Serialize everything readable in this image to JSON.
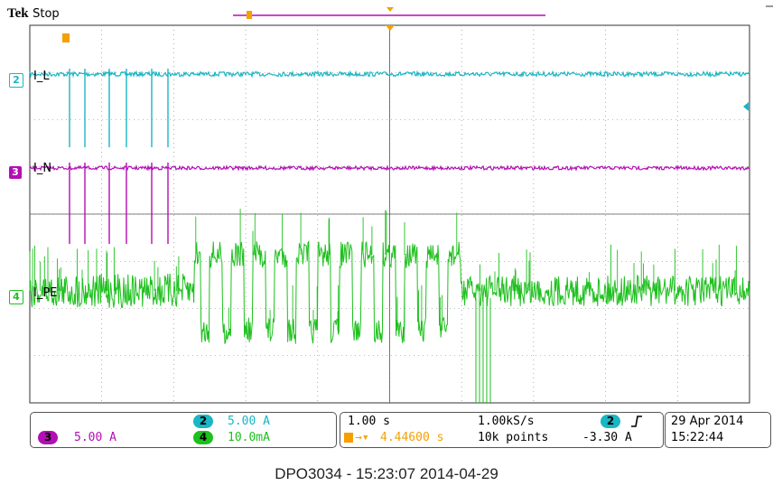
{
  "header": {
    "brand": "Tek",
    "run_state": "Stop"
  },
  "channels": [
    {
      "id": "2",
      "name": "I_L",
      "color": "#19b6c4"
    },
    {
      "id": "3",
      "name": "I_N",
      "color": "#b20fb4"
    },
    {
      "id": "4",
      "name": "I_PE",
      "color": "#1ec01e"
    }
  ],
  "markers": {
    "trigger_symbol": "T"
  },
  "scale_panel": {
    "ch2": {
      "num": "2",
      "value": "5.00 A"
    },
    "ch3": {
      "num": "3",
      "value": "5.00 A"
    },
    "ch4": {
      "num": "4",
      "value": "10.0mA"
    }
  },
  "time_panel": {
    "timebase": "1.00 s",
    "sample_rate": "1.00kS/s",
    "trigger_pos": "4.44600 s",
    "record_length": "10k points"
  },
  "trigger_panel": {
    "source": "2",
    "slope_icon": "rising-edge-icon",
    "level": "-3.30 A"
  },
  "datetime_panel": {
    "date": "29 Apr 2014",
    "time": "15:22:44"
  },
  "caption": "DPO3034 - 15:23:07   2014-04-29",
  "colors": {
    "grid": "#7a7a7a",
    "trigger": "#f5a000",
    "frame": "#333333"
  }
}
